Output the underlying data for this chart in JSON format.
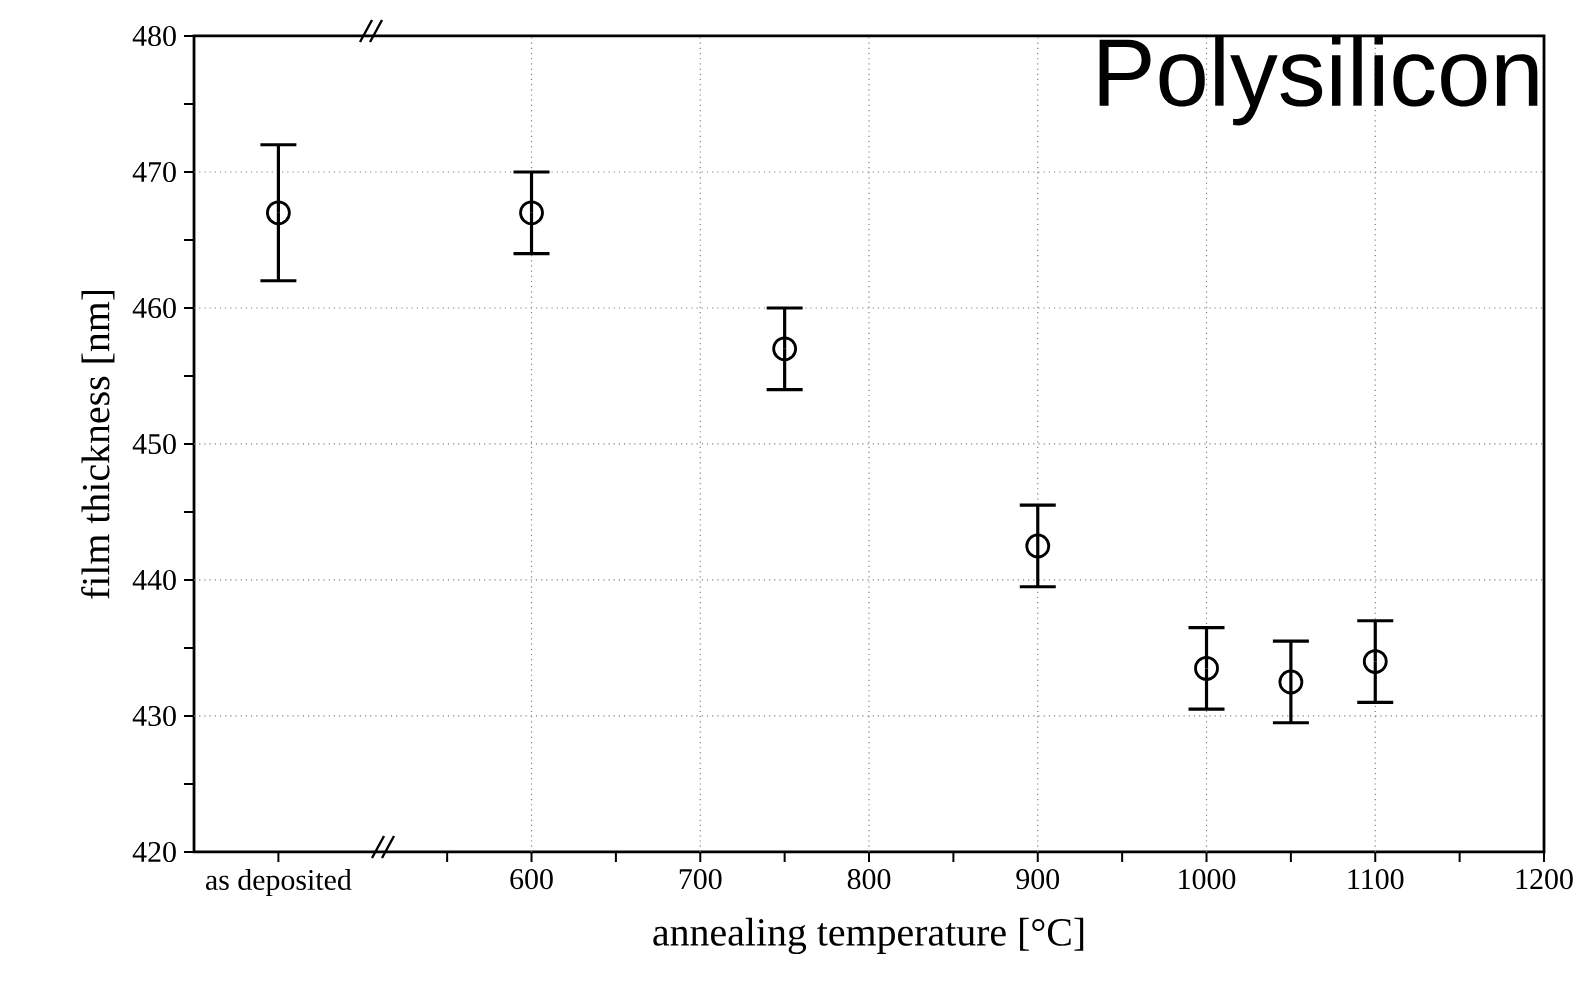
{
  "chart_data": {
    "type": "scatter",
    "title": "Polysilicon",
    "xlabel": "annealing temperature [°C]",
    "ylabel": "film thickness [nm]",
    "x": [
      450,
      600,
      750,
      900,
      1000,
      1050,
      1100
    ],
    "values": [
      467,
      467,
      457,
      442.5,
      433.5,
      432.5,
      434
    ],
    "errors": [
      5,
      3,
      3,
      3,
      3,
      3,
      3
    ],
    "color": "#000000",
    "marker": "circle",
    "grid": true,
    "xlim": [
      400,
      1200
    ],
    "xticks": [
      {
        "value": 450,
        "label": "as deposited"
      },
      {
        "value": 550,
        "label": null
      },
      600,
      {
        "value": 650,
        "label": null
      },
      700,
      {
        "value": 750,
        "label": null
      },
      800,
      {
        "value": 850,
        "label": null
      },
      900,
      {
        "value": 950,
        "label": null
      },
      1000,
      {
        "value": 1050,
        "label": null
      },
      1100,
      {
        "value": 1150,
        "label": null
      },
      1200
    ],
    "ylim": [
      420,
      480
    ],
    "yticks": [
      420,
      {
        "value": 425,
        "label": null
      },
      430,
      {
        "value": 435,
        "label": null
      },
      440,
      {
        "value": 445,
        "label": null
      },
      450,
      {
        "value": 455,
        "label": null
      },
      460,
      {
        "value": 465,
        "label": null
      },
      470,
      {
        "value": 475,
        "label": null
      },
      480
    ]
  }
}
